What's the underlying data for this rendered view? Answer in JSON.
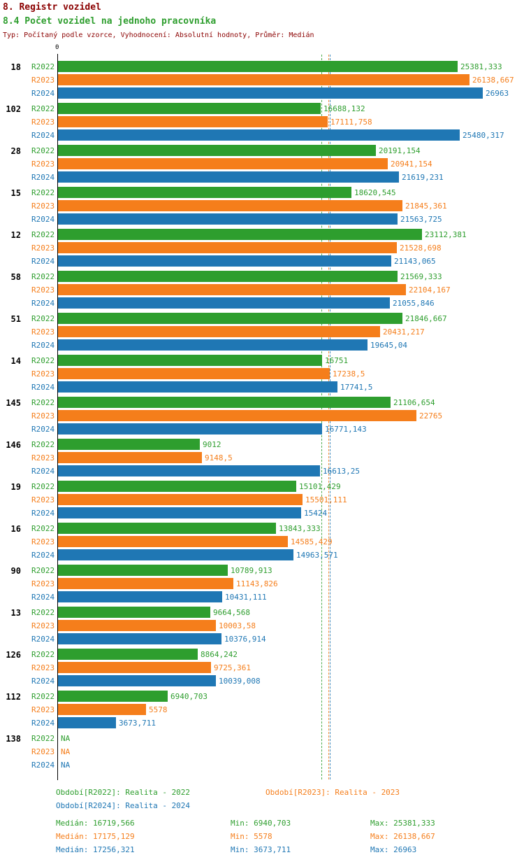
{
  "header": {
    "title": "8. Registr vozidel",
    "subtitle": "8.4 Počet vozidel na jednoho pracovníka",
    "meta": "Typ: Počítaný podle vzorce, Vyhodnocení: Absolutní hodnoty, Průměr: Medián"
  },
  "colors": {
    "title": "#8b0000",
    "subtitle_green": "#2e9e2e",
    "axis": "#000000",
    "green": "#2e9e2e",
    "orange": "#f57e1b",
    "blue": "#1f77b4"
  },
  "chart_data": {
    "type": "bar",
    "orientation": "horizontal",
    "title": "8.4 Počet vozidel na jednoho pracovníka",
    "xlabel": "",
    "ylabel": "",
    "legend_position": "bottom",
    "grid": false,
    "x_axis": {
      "zero_label": "0",
      "min": 0,
      "max": 26963
    },
    "series": [
      {
        "key": "R2022",
        "label": "R2022",
        "color": "#2e9e2e",
        "legend": "Období[R2022]: Realita - 2022",
        "median": 16719.566,
        "stats": {
          "median": "Medián: 16719,566",
          "min": "Min: 6940,703",
          "max": "Max: 25381,333"
        }
      },
      {
        "key": "R2023",
        "label": "R2023",
        "color": "#f57e1b",
        "legend": "Období[R2023]: Realita - 2023",
        "median": 17175.129,
        "stats": {
          "median": "Medián: 17175,129",
          "min": "Min: 5578",
          "max": "Max: 26138,667"
        }
      },
      {
        "key": "R2024",
        "label": "R2024",
        "color": "#1f77b4",
        "legend": "Období[R2024]: Realita - 2024",
        "median": 17256.321,
        "stats": {
          "median": "Medián: 17256,321",
          "min": "Min: 3673,711",
          "max": "Max: 26963"
        }
      }
    ],
    "groups": [
      {
        "id": "18",
        "values": [
          {
            "v": 25381.333,
            "label": "25381,333"
          },
          {
            "v": 26138.667,
            "label": "26138,667"
          },
          {
            "v": 26963,
            "label": "26963"
          }
        ]
      },
      {
        "id": "102",
        "values": [
          {
            "v": 16688.132,
            "label": "16688,132"
          },
          {
            "v": 17111.758,
            "label": "17111,758"
          },
          {
            "v": 25480.317,
            "label": "25480,317"
          }
        ]
      },
      {
        "id": "28",
        "values": [
          {
            "v": 20191.154,
            "label": "20191,154"
          },
          {
            "v": 20941.154,
            "label": "20941,154"
          },
          {
            "v": 21619.231,
            "label": "21619,231"
          }
        ]
      },
      {
        "id": "15",
        "values": [
          {
            "v": 18620.545,
            "label": "18620,545"
          },
          {
            "v": 21845.361,
            "label": "21845,361"
          },
          {
            "v": 21563.725,
            "label": "21563,725"
          }
        ]
      },
      {
        "id": "12",
        "values": [
          {
            "v": 23112.381,
            "label": "23112,381"
          },
          {
            "v": 21528.698,
            "label": "21528,698"
          },
          {
            "v": 21143.065,
            "label": "21143,065"
          }
        ]
      },
      {
        "id": "58",
        "values": [
          {
            "v": 21569.333,
            "label": "21569,333"
          },
          {
            "v": 22104.167,
            "label": "22104,167"
          },
          {
            "v": 21055.846,
            "label": "21055,846"
          }
        ]
      },
      {
        "id": "51",
        "values": [
          {
            "v": 21846.667,
            "label": "21846,667"
          },
          {
            "v": 20431.217,
            "label": "20431,217"
          },
          {
            "v": 19645.04,
            "label": "19645,04"
          }
        ]
      },
      {
        "id": "14",
        "values": [
          {
            "v": 16751,
            "label": "16751"
          },
          {
            "v": 17238.5,
            "label": "17238,5"
          },
          {
            "v": 17741.5,
            "label": "17741,5"
          }
        ]
      },
      {
        "id": "145",
        "values": [
          {
            "v": 21106.654,
            "label": "21106,654"
          },
          {
            "v": 22765,
            "label": "22765"
          },
          {
            "v": 16771.143,
            "label": "16771,143"
          }
        ]
      },
      {
        "id": "146",
        "values": [
          {
            "v": 9012,
            "label": "9012"
          },
          {
            "v": 9148.5,
            "label": "9148,5"
          },
          {
            "v": 16613.25,
            "label": "16613,25"
          }
        ]
      },
      {
        "id": "19",
        "values": [
          {
            "v": 15101.429,
            "label": "15101,429"
          },
          {
            "v": 15501.111,
            "label": "15501,111"
          },
          {
            "v": 15424,
            "label": "15424"
          }
        ]
      },
      {
        "id": "16",
        "values": [
          {
            "v": 13843.333,
            "label": "13843,333"
          },
          {
            "v": 14585.429,
            "label": "14585,429"
          },
          {
            "v": 14963.571,
            "label": "14963,571"
          }
        ]
      },
      {
        "id": "90",
        "values": [
          {
            "v": 10789.913,
            "label": "10789,913"
          },
          {
            "v": 11143.826,
            "label": "11143,826"
          },
          {
            "v": 10431.111,
            "label": "10431,111"
          }
        ]
      },
      {
        "id": "13",
        "values": [
          {
            "v": 9664.568,
            "label": "9664,568"
          },
          {
            "v": 10003.58,
            "label": "10003,58"
          },
          {
            "v": 10376.914,
            "label": "10376,914"
          }
        ]
      },
      {
        "id": "126",
        "values": [
          {
            "v": 8864.242,
            "label": "8864,242"
          },
          {
            "v": 9725.361,
            "label": "9725,361"
          },
          {
            "v": 10039.008,
            "label": "10039,008"
          }
        ]
      },
      {
        "id": "112",
        "values": [
          {
            "v": 6940.703,
            "label": "6940,703"
          },
          {
            "v": 5578,
            "label": "5578"
          },
          {
            "v": 3673.711,
            "label": "3673,711"
          }
        ]
      },
      {
        "id": "138",
        "values": [
          {
            "v": 0,
            "label": "NA"
          },
          {
            "v": 0,
            "label": "NA"
          },
          {
            "v": 0,
            "label": "NA"
          }
        ]
      }
    ]
  }
}
